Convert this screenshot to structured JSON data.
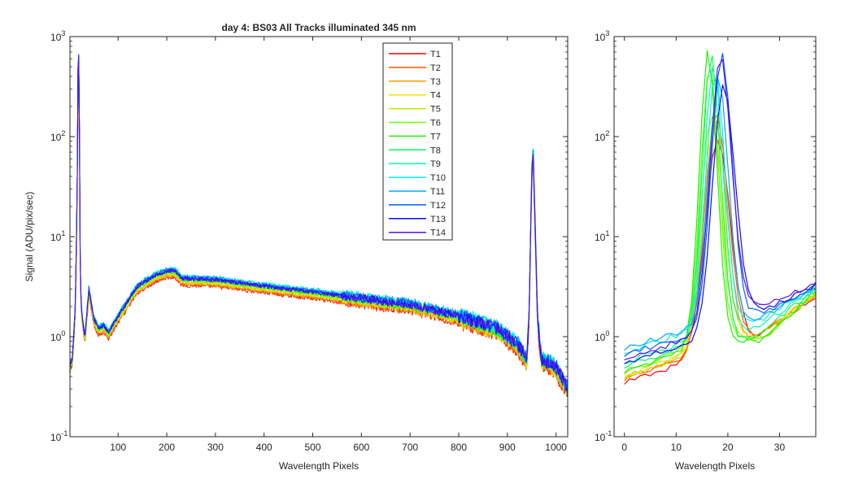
{
  "chart_data": [
    {
      "type": "line",
      "title": "day 4: BS03   All Tracks illuminated   345 nm",
      "xlabel": "Wavelength Pixels",
      "ylabel": "Signal (ADU/pix/sec)",
      "xlim": [
        1,
        1024
      ],
      "ylim": [
        0.1,
        1000
      ],
      "yscale": "log",
      "xticks": [
        100,
        200,
        300,
        400,
        500,
        600,
        700,
        800,
        900,
        1000
      ],
      "yticks": [
        0.1,
        1,
        10,
        100,
        1000
      ],
      "ytick_labels": [
        [
          "10",
          "-1"
        ],
        [
          "10",
          "0"
        ],
        [
          "10",
          "1"
        ],
        [
          "10",
          "2"
        ],
        [
          "10",
          "3"
        ]
      ],
      "legend": {
        "position": "top-center",
        "entries": [
          "T1",
          "T2",
          "T3",
          "T4",
          "T5",
          "T6",
          "T7",
          "T8",
          "T9",
          "T10",
          "T11",
          "T12",
          "T13",
          "T14"
        ]
      },
      "series": [
        {
          "name": "T1",
          "color": "#ff0000",
          "peak": 95,
          "scale": 0.86
        },
        {
          "name": "T2",
          "color": "#ff5a00",
          "peak": 170,
          "scale": 0.88
        },
        {
          "name": "T3",
          "color": "#ff9b00",
          "peak": 150,
          "scale": 0.9
        },
        {
          "name": "T4",
          "color": "#f2e000",
          "peak": 130,
          "scale": 0.92
        },
        {
          "name": "T5",
          "color": "#b4ee00",
          "peak": 170,
          "scale": 0.94
        },
        {
          "name": "T6",
          "color": "#6cff00",
          "peak": 520,
          "scale": 0.96
        },
        {
          "name": "T7",
          "color": "#22ef00",
          "peak": 710,
          "scale": 0.98
        },
        {
          "name": "T8",
          "color": "#00ff5e",
          "peak": 660,
          "scale": 1.0
        },
        {
          "name": "T9",
          "color": "#00ffa8",
          "peak": 540,
          "scale": 1.02
        },
        {
          "name": "T10",
          "color": "#00eeee",
          "peak": 430,
          "scale": 1.06
        },
        {
          "name": "T11",
          "color": "#00a8ff",
          "peak": 390,
          "scale": 1.04
        },
        {
          "name": "T12",
          "color": "#0060ff",
          "peak": 660,
          "scale": 1.02
        },
        {
          "name": "T13",
          "color": "#0a0aff",
          "peak": 340,
          "scale": 1.0
        },
        {
          "name": "T14",
          "color": "#5a10e6",
          "peak": 620,
          "scale": 1.0
        }
      ],
      "shape": {
        "x": [
          1,
          6,
          12,
          16,
          18,
          20,
          22,
          24,
          28,
          32,
          40,
          50,
          60,
          70,
          80,
          100,
          140,
          180,
          200,
          215,
          222,
          230,
          300,
          400,
          500,
          600,
          700,
          800,
          880,
          920,
          940,
          945,
          950,
          953,
          956,
          962,
          970,
          1000,
          1024
        ],
        "y": [
          0.5,
          0.6,
          2.0,
          30,
          400,
          150,
          6,
          2.0,
          1.3,
          1.0,
          3.0,
          1.5,
          1.2,
          1.3,
          1.1,
          1.6,
          3.2,
          4.2,
          4.5,
          4.6,
          4.3,
          3.8,
          3.7,
          3.2,
          2.8,
          2.4,
          2.1,
          1.6,
          1.2,
          0.85,
          0.6,
          1.8,
          40,
          80,
          20,
          1.6,
          0.6,
          0.5,
          0.3
        ]
      }
    },
    {
      "type": "line",
      "title": "",
      "xlabel": "Wavelength Pixels",
      "ylabel": "",
      "xlim": [
        -2,
        37
      ],
      "ylim": [
        0.1,
        1000
      ],
      "yscale": "log",
      "xticks": [
        0,
        10,
        20,
        30
      ],
      "yticks": [
        0.1,
        1,
        10,
        100,
        1000
      ],
      "ytick_labels": [
        [
          "10",
          "-1"
        ],
        [
          "10",
          "0"
        ],
        [
          "10",
          "1"
        ],
        [
          "10",
          "2"
        ],
        [
          "10",
          "3"
        ]
      ],
      "series_ref": "same tracks T1–T14 as left panel (zoom of pixels 0–37)",
      "tracks": [
        {
          "name": "T1",
          "peak_x": 18.0,
          "peak": 95,
          "start": 0.35,
          "valley_x": 26.0,
          "valley": 1.0,
          "end": 2.5,
          "sigma": 3.4
        },
        {
          "name": "T2",
          "peak_x": 17.8,
          "peak": 170,
          "start": 0.38,
          "valley_x": 26.5,
          "valley": 1.05,
          "end": 2.6,
          "sigma": 3.2
        },
        {
          "name": "T3",
          "peak_x": 17.6,
          "peak": 150,
          "start": 0.4,
          "valley_x": 25.5,
          "valley": 0.98,
          "end": 2.6,
          "sigma": 3.0
        },
        {
          "name": "T4",
          "peak_x": 17.2,
          "peak": 130,
          "start": 0.42,
          "valley_x": 25.0,
          "valley": 1.0,
          "end": 2.7,
          "sigma": 2.9
        },
        {
          "name": "T5",
          "peak_x": 16.8,
          "peak": 170,
          "start": 0.4,
          "valley_x": 26.0,
          "valley": 0.95,
          "end": 2.7,
          "sigma": 2.7
        },
        {
          "name": "T6",
          "peak_x": 16.5,
          "peak": 520,
          "start": 0.45,
          "valley_x": 27.0,
          "valley": 0.95,
          "end": 2.8,
          "sigma": 2.5
        },
        {
          "name": "T7",
          "peak_x": 16.2,
          "peak": 710,
          "start": 0.44,
          "valley_x": 26.5,
          "valley": 0.92,
          "end": 2.9,
          "sigma": 2.4
        },
        {
          "name": "T8",
          "peak_x": 16.8,
          "peak": 660,
          "start": 0.5,
          "valley_x": 25.5,
          "valley": 1.0,
          "end": 3.0,
          "sigma": 2.5
        },
        {
          "name": "T9",
          "peak_x": 17.2,
          "peak": 540,
          "start": 0.55,
          "valley_x": 25.0,
          "valley": 1.2,
          "end": 3.0,
          "sigma": 2.6
        },
        {
          "name": "T10",
          "peak_x": 17.6,
          "peak": 430,
          "start": 0.7,
          "valley_x": 25.5,
          "valley": 1.4,
          "end": 3.1,
          "sigma": 2.6
        },
        {
          "name": "T11",
          "peak_x": 18.2,
          "peak": 390,
          "start": 0.75,
          "valley_x": 26.0,
          "valley": 1.5,
          "end": 3.2,
          "sigma": 2.7
        },
        {
          "name": "T12",
          "peak_x": 18.8,
          "peak": 660,
          "start": 0.65,
          "valley_x": 27.0,
          "valley": 1.7,
          "end": 3.3,
          "sigma": 2.8
        },
        {
          "name": "T13",
          "peak_x": 19.2,
          "peak": 340,
          "start": 0.55,
          "valley_x": 28.0,
          "valley": 1.9,
          "end": 3.3,
          "sigma": 3.0
        },
        {
          "name": "T14",
          "peak_x": 18.6,
          "peak": 620,
          "start": 0.6,
          "valley_x": 27.5,
          "valley": 2.2,
          "end": 3.4,
          "sigma": 2.9
        }
      ]
    }
  ]
}
